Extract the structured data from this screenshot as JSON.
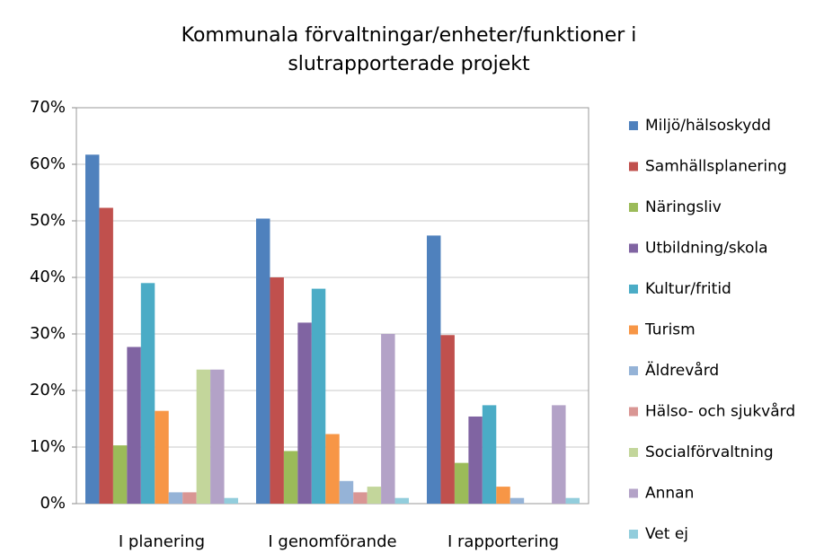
{
  "chart_data": {
    "type": "bar",
    "title": [
      "Kommunala förvaltningar/enheter/funktioner i",
      "slutrapporterade projekt"
    ],
    "categories": [
      "I planering",
      "I genomförande",
      "I rapportering"
    ],
    "series": [
      {
        "name": "Miljö/hälsoskydd",
        "color": "#4F81BD",
        "values": [
          61.7,
          50.4,
          47.4
        ]
      },
      {
        "name": "Samhällsplanering",
        "color": "#C0504D",
        "values": [
          52.3,
          40,
          29.8
        ]
      },
      {
        "name": "Näringsliv",
        "color": "#9BBB59",
        "values": [
          10.3,
          9.3,
          7.2
        ]
      },
      {
        "name": "Utbildning/skola",
        "color": "#8064A2",
        "values": [
          27.7,
          32,
          15.4
        ]
      },
      {
        "name": "Kultur/fritid",
        "color": "#4BACC6",
        "values": [
          39,
          38,
          17.4
        ]
      },
      {
        "name": "Turism",
        "color": "#F79646",
        "values": [
          16.4,
          12.3,
          3
        ]
      },
      {
        "name": "Äldrevård",
        "color": "#95B3D7",
        "values": [
          2,
          4,
          1
        ]
      },
      {
        "name": "Hälso- och sjukvård",
        "color": "#D99694",
        "values": [
          2,
          2,
          0
        ]
      },
      {
        "name": "Socialförvaltning",
        "color": "#C3D69B",
        "values": [
          23.7,
          3,
          0
        ]
      },
      {
        "name": "Annan",
        "color": "#B3A2C7",
        "values": [
          23.7,
          30,
          17.4
        ]
      },
      {
        "name": "Vet ej",
        "color": "#92CDDC",
        "values": [
          1,
          1,
          1
        ]
      }
    ],
    "ylim": [
      0,
      70
    ],
    "yticks": [
      {
        "value": 0,
        "label": "0%"
      },
      {
        "value": 10,
        "label": "10%"
      },
      {
        "value": 20,
        "label": "20%"
      },
      {
        "value": 30,
        "label": "30%"
      },
      {
        "value": 40,
        "label": "40%"
      },
      {
        "value": 50,
        "label": "50%"
      },
      {
        "value": 60,
        "label": "60%"
      },
      {
        "value": 70,
        "label": "70%"
      }
    ],
    "grid": true,
    "legend": "right"
  }
}
